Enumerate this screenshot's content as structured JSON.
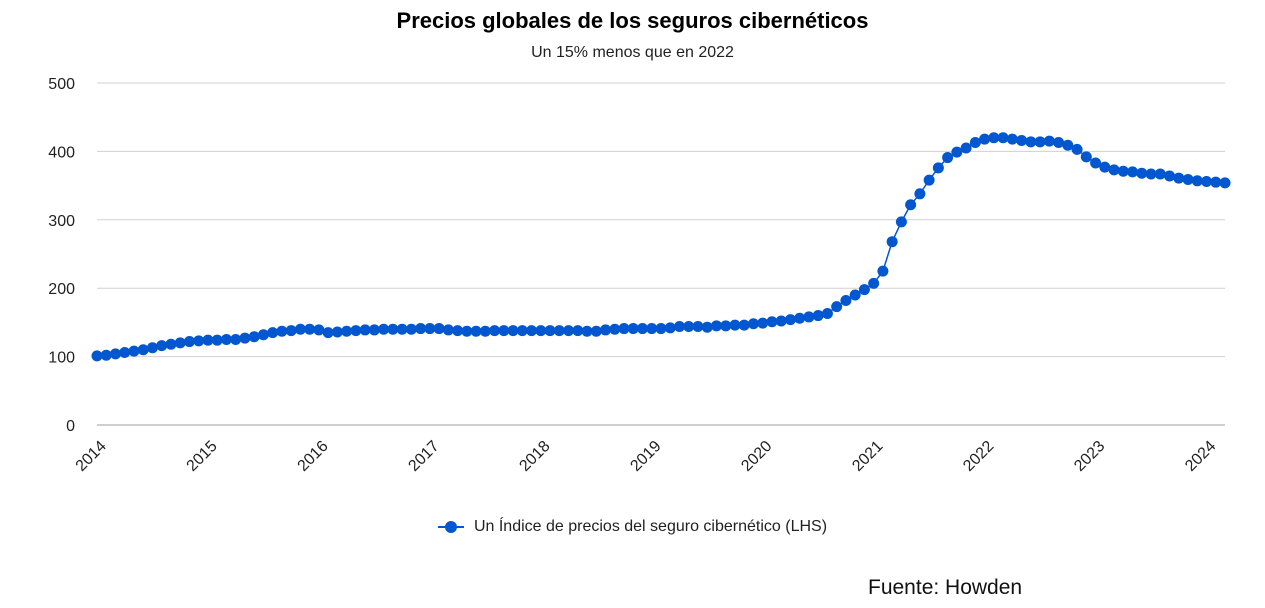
{
  "chart_data": {
    "type": "line",
    "title": "Precios globales de los seguros cibernéticos",
    "subtitle": "Un 15% menos que en 2022",
    "xlabel": "",
    "ylabel": "",
    "ylim": [
      0,
      500
    ],
    "yticks": [
      "0",
      "100",
      "200",
      "300",
      "400",
      "500"
    ],
    "xlim": [
      "2014-01",
      "2024-03"
    ],
    "xticks": [
      "2014",
      "2015",
      "2016",
      "2017",
      "2018",
      "2019",
      "2020",
      "2021",
      "2022",
      "2023",
      "2024"
    ],
    "grid": "horizontal",
    "legend_position": "bottom",
    "series": [
      {
        "name": "Un Índice de precios del seguro cibernético (LHS)",
        "color": "#0057d0",
        "x": [
          "2014-01",
          "2014-02",
          "2014-03",
          "2014-04",
          "2014-05",
          "2014-06",
          "2014-07",
          "2014-08",
          "2014-09",
          "2014-10",
          "2014-11",
          "2014-12",
          "2015-01",
          "2015-02",
          "2015-03",
          "2015-04",
          "2015-05",
          "2015-06",
          "2015-07",
          "2015-08",
          "2015-09",
          "2015-10",
          "2015-11",
          "2015-12",
          "2016-01",
          "2016-02",
          "2016-03",
          "2016-04",
          "2016-05",
          "2016-06",
          "2016-07",
          "2016-08",
          "2016-09",
          "2016-10",
          "2016-11",
          "2016-12",
          "2017-01",
          "2017-02",
          "2017-03",
          "2017-04",
          "2017-05",
          "2017-06",
          "2017-07",
          "2017-08",
          "2017-09",
          "2017-10",
          "2017-11",
          "2017-12",
          "2018-01",
          "2018-02",
          "2018-03",
          "2018-04",
          "2018-05",
          "2018-06",
          "2018-07",
          "2018-08",
          "2018-09",
          "2018-10",
          "2018-11",
          "2018-12",
          "2019-01",
          "2019-02",
          "2019-03",
          "2019-04",
          "2019-05",
          "2019-06",
          "2019-07",
          "2019-08",
          "2019-09",
          "2019-10",
          "2019-11",
          "2019-12",
          "2020-01",
          "2020-02",
          "2020-03",
          "2020-04",
          "2020-05",
          "2020-06",
          "2020-07",
          "2020-08",
          "2020-09",
          "2020-10",
          "2020-11",
          "2020-12",
          "2021-01",
          "2021-02",
          "2021-03",
          "2021-04",
          "2021-05",
          "2021-06",
          "2021-07",
          "2021-08",
          "2021-09",
          "2021-10",
          "2021-11",
          "2021-12",
          "2022-01",
          "2022-02",
          "2022-03",
          "2022-04",
          "2022-05",
          "2022-06",
          "2022-07",
          "2022-08",
          "2022-09",
          "2022-10",
          "2022-11",
          "2022-12",
          "2023-01",
          "2023-02",
          "2023-03",
          "2023-04",
          "2023-05",
          "2023-06",
          "2023-07",
          "2023-08",
          "2023-09",
          "2023-10",
          "2023-11",
          "2023-12",
          "2024-01",
          "2024-02",
          "2024-03"
        ],
        "values": [
          101,
          102,
          104,
          106,
          108,
          110,
          113,
          116,
          118,
          120,
          122,
          123,
          124,
          124,
          125,
          125,
          127,
          129,
          132,
          135,
          137,
          138,
          140,
          140,
          139,
          135,
          136,
          137,
          138,
          139,
          139,
          140,
          140,
          140,
          140,
          141,
          141,
          141,
          139,
          138,
          137,
          137,
          137,
          138,
          138,
          138,
          138,
          138,
          138,
          138,
          138,
          138,
          138,
          137,
          137,
          139,
          140,
          141,
          141,
          141,
          141,
          141,
          142,
          144,
          144,
          144,
          143,
          145,
          145,
          146,
          146,
          148,
          149,
          151,
          152,
          154,
          156,
          158,
          160,
          163,
          173,
          182,
          190,
          198,
          207,
          225,
          268,
          297,
          322,
          338,
          358,
          376,
          391,
          399,
          405,
          413,
          418,
          420,
          420,
          418,
          416,
          414,
          414,
          415,
          413,
          409,
          403,
          392,
          383,
          377,
          373,
          371,
          370,
          368,
          367,
          367,
          364,
          361,
          359,
          357,
          356,
          355,
          354
        ]
      }
    ]
  },
  "source": "Fuente: Howden"
}
